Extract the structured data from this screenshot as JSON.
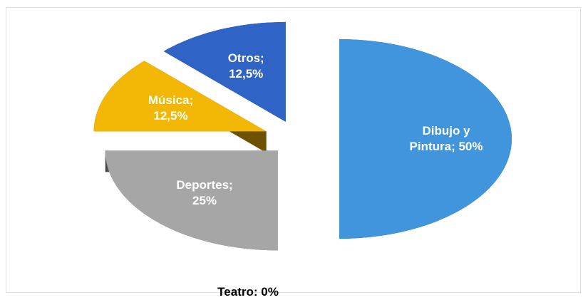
{
  "chart_data": {
    "type": "pie3d",
    "categories": [
      "Dibujo y Pintura",
      "Teatro",
      "Deportes",
      "Música",
      "Otros"
    ],
    "values": [
      50,
      0,
      25,
      12.5,
      12.5
    ],
    "value_labels": [
      "Dibujo y Pintura; 50%",
      "Teatro: 0%",
      "Deportes; 25%",
      "Música; 12,5%",
      "Otros; 12,5%"
    ],
    "colors": [
      "#4095dc",
      "#7f7f7f",
      "#a6a6a6",
      "#f2b705",
      "#2f63c6"
    ]
  }
}
